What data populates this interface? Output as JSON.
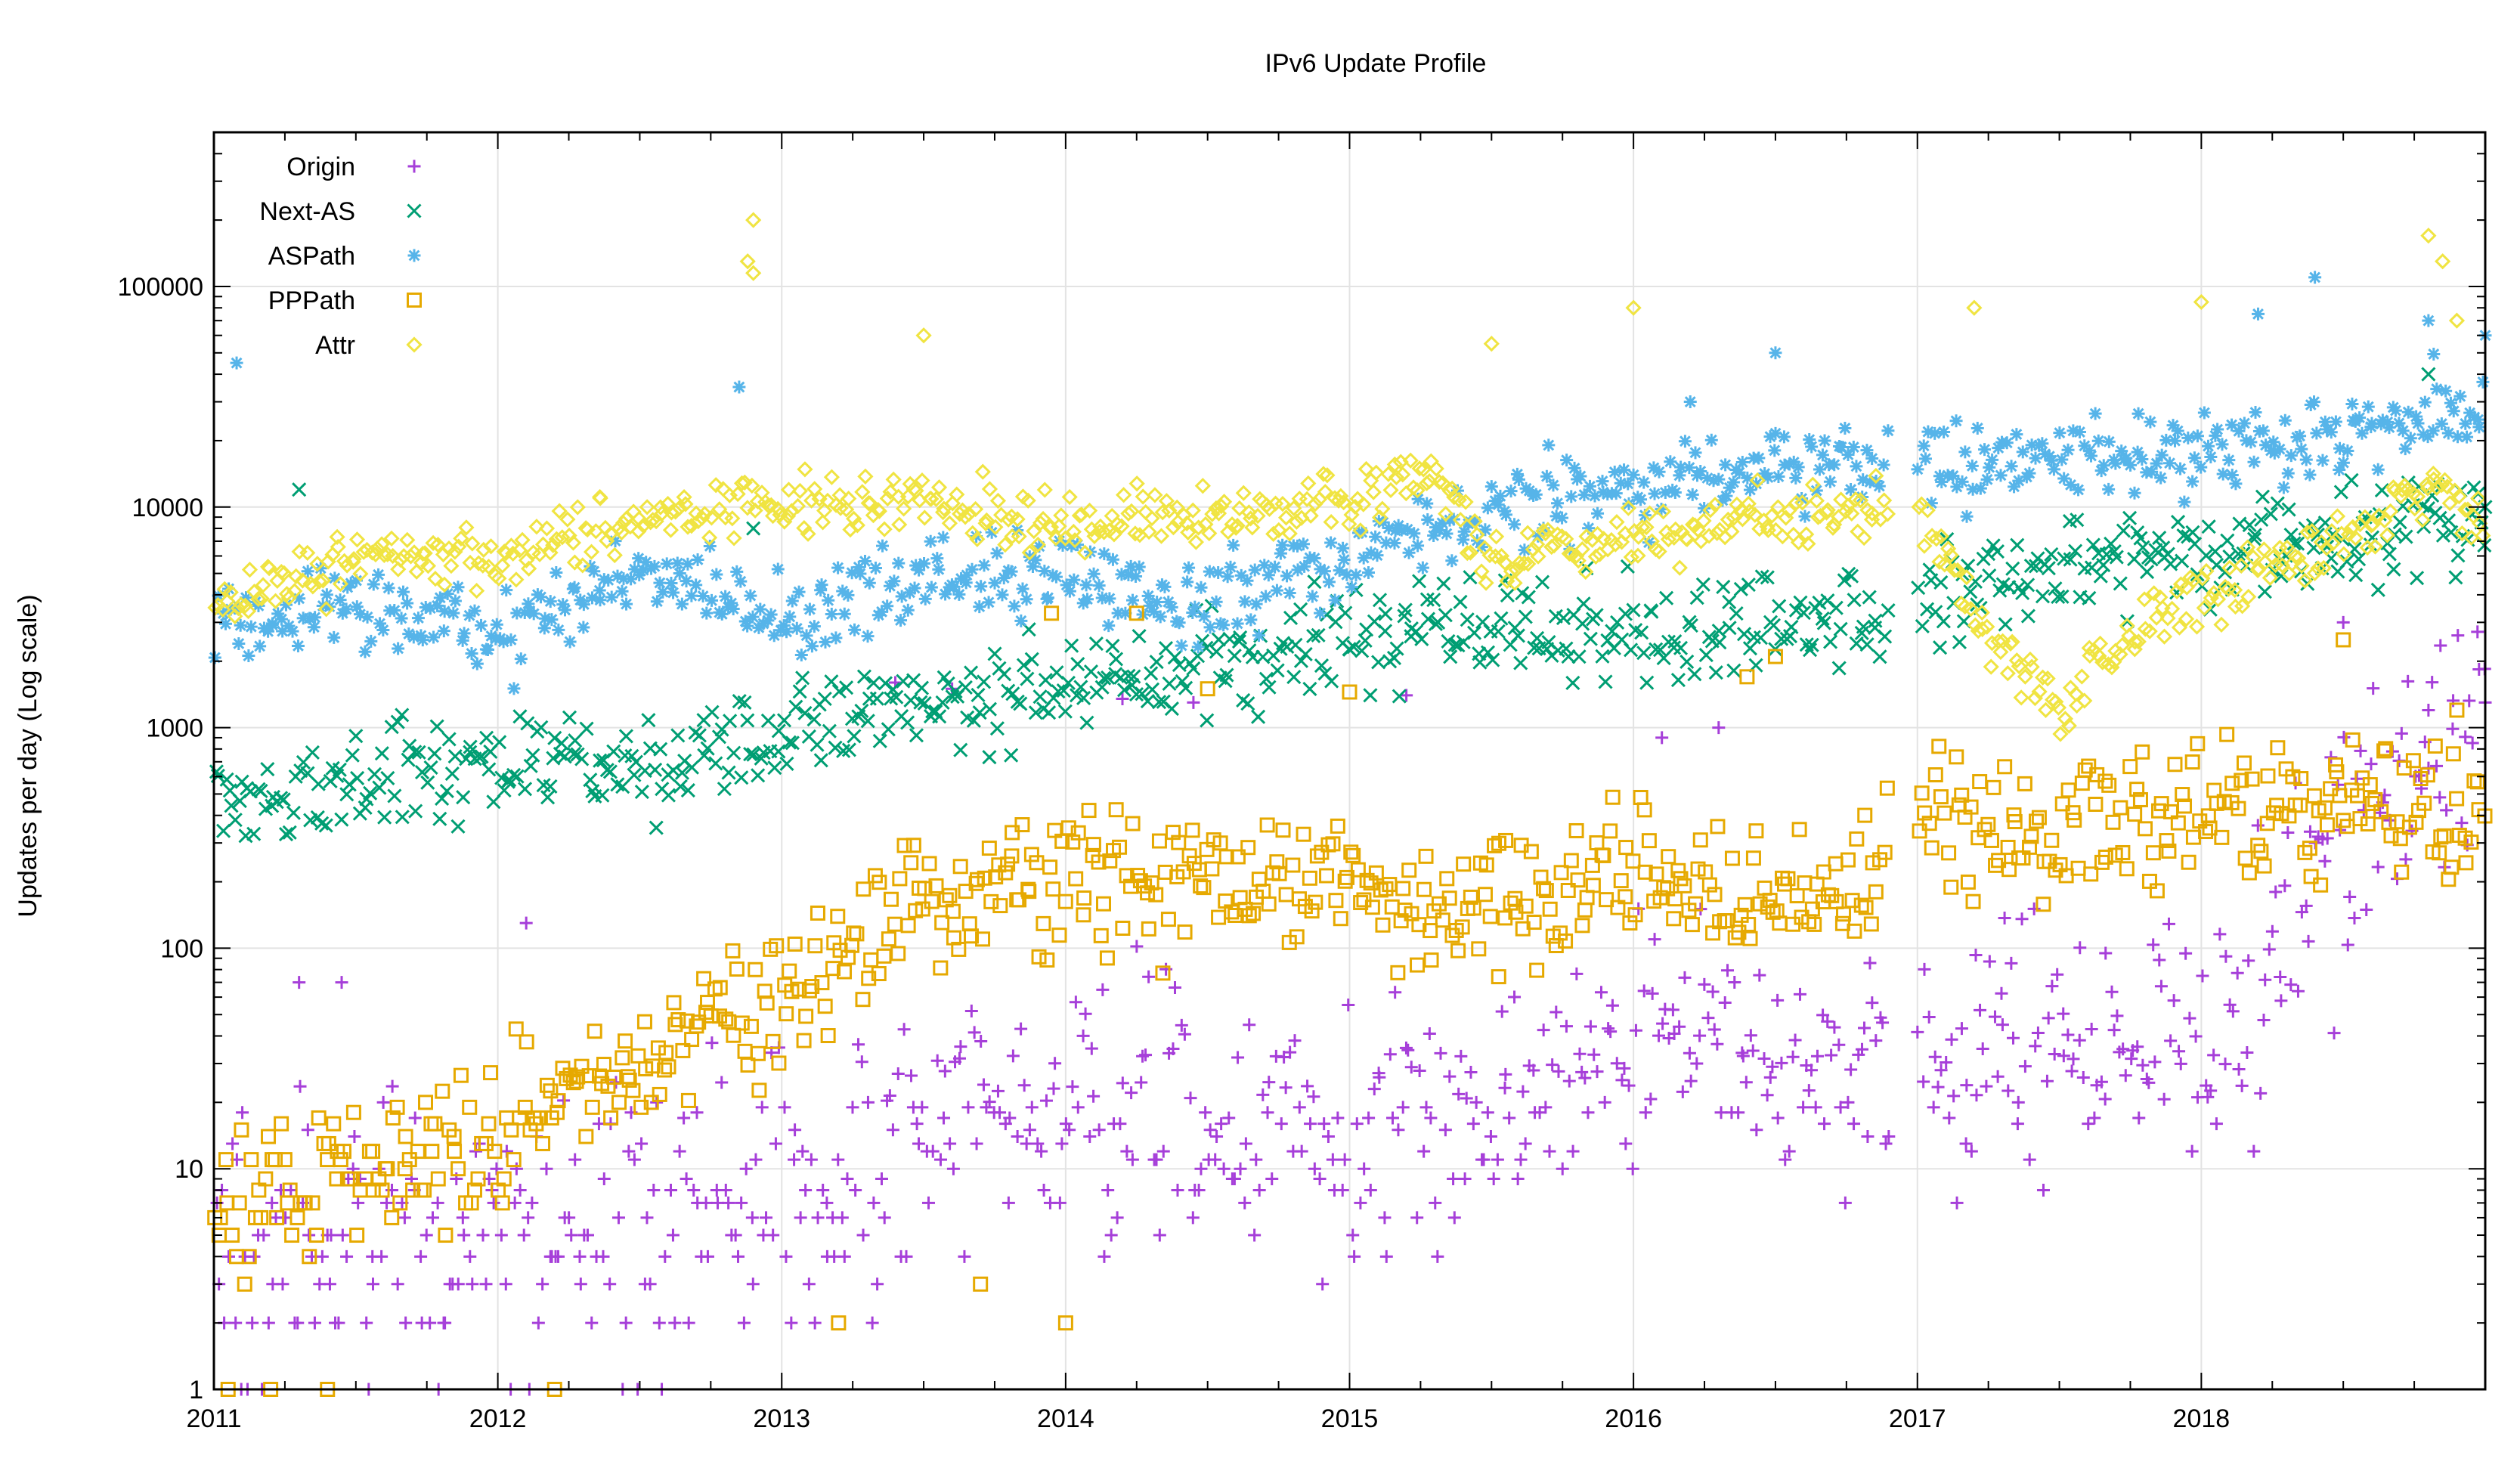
{
  "chart_data": {
    "type": "scatter",
    "title": "IPv6 Update Profile",
    "xlabel": "",
    "ylabel": "Updates per day (Log scale)",
    "xscale": "time",
    "yscale": "log",
    "xlim": [
      2011.0,
      2019.0
    ],
    "ylim": [
      1,
      500000
    ],
    "grid": true,
    "legend_position": "top-left",
    "x_ticks": [
      {
        "value": 2011,
        "label": "2011"
      },
      {
        "value": 2012,
        "label": "2012"
      },
      {
        "value": 2013,
        "label": "2013"
      },
      {
        "value": 2014,
        "label": "2014"
      },
      {
        "value": 2015,
        "label": "2015"
      },
      {
        "value": 2016,
        "label": "2016"
      },
      {
        "value": 2017,
        "label": "2017"
      },
      {
        "value": 2018,
        "label": "2018"
      }
    ],
    "y_ticks": [
      {
        "value": 1,
        "label": "1"
      },
      {
        "value": 10,
        "label": "10"
      },
      {
        "value": 100,
        "label": "100"
      },
      {
        "value": 1000,
        "label": "1000"
      },
      {
        "value": 10000,
        "label": "10000"
      },
      {
        "value": 100000,
        "label": "100000"
      }
    ],
    "data_gap": [
      2016.9,
      2017.0
    ],
    "series": [
      {
        "name": "Origin",
        "marker": "plus",
        "color": "#a63fd9",
        "trend": [
          [
            2011.0,
            3
          ],
          [
            2011.5,
            4
          ],
          [
            2012.0,
            5
          ],
          [
            2012.5,
            6
          ],
          [
            2013.0,
            8
          ],
          [
            2013.5,
            12
          ],
          [
            2014.0,
            18
          ],
          [
            2014.5,
            18
          ],
          [
            2015.0,
            15
          ],
          [
            2015.5,
            18
          ],
          [
            2016.0,
            40
          ],
          [
            2016.5,
            40
          ],
          [
            2016.9,
            25
          ],
          [
            2017.0,
            25
          ],
          [
            2017.5,
            45
          ],
          [
            2018.0,
            35
          ],
          [
            2018.5,
            300
          ],
          [
            2019.0,
            1200
          ]
        ],
        "spread_decades": 0.55,
        "highlights": [
          [
            2011.1,
            18
          ],
          [
            2011.3,
            70
          ],
          [
            2011.45,
            70
          ],
          [
            2012.1,
            130
          ],
          [
            2013.4,
            1600
          ],
          [
            2013.6,
            1500
          ],
          [
            2014.2,
            1350
          ],
          [
            2014.45,
            1300
          ],
          [
            2015.2,
            1400
          ],
          [
            2016.1,
            900
          ],
          [
            2016.3,
            1000
          ],
          [
            2017.3,
            45
          ],
          [
            2018.5,
            3000
          ],
          [
            2018.8,
            1200
          ],
          [
            2019.0,
            1300
          ]
        ]
      },
      {
        "name": "Next-AS",
        "marker": "x",
        "color": "#009e73",
        "trend": [
          [
            2011.0,
            500
          ],
          [
            2011.5,
            550
          ],
          [
            2012.0,
            700
          ],
          [
            2012.5,
            700
          ],
          [
            2013.0,
            1000
          ],
          [
            2013.5,
            1300
          ],
          [
            2014.0,
            1500
          ],
          [
            2014.5,
            2000
          ],
          [
            2015.0,
            2500
          ],
          [
            2015.5,
            3000
          ],
          [
            2016.0,
            2500
          ],
          [
            2016.5,
            3000
          ],
          [
            2016.9,
            3500
          ],
          [
            2017.0,
            3500
          ],
          [
            2017.5,
            5000
          ],
          [
            2018.0,
            6000
          ],
          [
            2018.5,
            7000
          ],
          [
            2019.0,
            9000
          ]
        ],
        "spread_decades": 0.22,
        "highlights": [
          [
            2011.3,
            12000
          ],
          [
            2012.9,
            8000
          ],
          [
            2018.8,
            40000
          ],
          [
            2019.0,
            10000
          ]
        ]
      },
      {
        "name": "ASPath",
        "marker": "star",
        "color": "#56b4e9",
        "trend": [
          [
            2011.0,
            2500
          ],
          [
            2011.5,
            4000
          ],
          [
            2012.0,
            2500
          ],
          [
            2012.5,
            5000
          ],
          [
            2013.0,
            3000
          ],
          [
            2013.5,
            4500
          ],
          [
            2014.0,
            5000
          ],
          [
            2014.5,
            3500
          ],
          [
            2015.0,
            6000
          ],
          [
            2015.5,
            10000
          ],
          [
            2016.0,
            12000
          ],
          [
            2016.5,
            16000
          ],
          [
            2016.9,
            14000
          ],
          [
            2017.0,
            15000
          ],
          [
            2017.5,
            16000
          ],
          [
            2018.0,
            18000
          ],
          [
            2018.5,
            22000
          ],
          [
            2019.0,
            30000
          ]
        ],
        "spread_decades": 0.18,
        "highlights": [
          [
            2011.08,
            45000
          ],
          [
            2012.85,
            35000
          ],
          [
            2016.2,
            30000
          ],
          [
            2016.5,
            50000
          ],
          [
            2018.2,
            75000
          ],
          [
            2018.4,
            110000
          ],
          [
            2018.8,
            70000
          ],
          [
            2019.0,
            60000
          ]
        ]
      },
      {
        "name": "PPPath",
        "marker": "square",
        "color": "#e6a900",
        "trend": [
          [
            2011.0,
            6
          ],
          [
            2011.5,
            10
          ],
          [
            2012.0,
            15
          ],
          [
            2012.5,
            30
          ],
          [
            2013.0,
            60
          ],
          [
            2013.5,
            150
          ],
          [
            2014.0,
            200
          ],
          [
            2014.5,
            200
          ],
          [
            2015.0,
            180
          ],
          [
            2015.5,
            160
          ],
          [
            2016.0,
            200
          ],
          [
            2016.5,
            160
          ],
          [
            2016.9,
            200
          ],
          [
            2017.0,
            400
          ],
          [
            2017.5,
            300
          ],
          [
            2018.0,
            450
          ],
          [
            2018.5,
            450
          ],
          [
            2019.0,
            400
          ]
        ],
        "spread_decades": 0.3,
        "highlights": [
          [
            2011.05,
            1
          ],
          [
            2011.2,
            1
          ],
          [
            2011.4,
            1
          ],
          [
            2012.2,
            1
          ],
          [
            2013.2,
            2
          ],
          [
            2013.7,
            3
          ],
          [
            2014.0,
            2
          ],
          [
            2013.95,
            3300
          ],
          [
            2014.25,
            3300
          ],
          [
            2014.5,
            1500
          ],
          [
            2015.0,
            1450
          ],
          [
            2016.4,
            1700
          ],
          [
            2016.5,
            2100
          ],
          [
            2018.5,
            2500
          ],
          [
            2018.9,
            1200
          ]
        ]
      },
      {
        "name": "Attr",
        "marker": "diamond",
        "color": "#f0e442",
        "trend": [
          [
            2011.0,
            3500
          ],
          [
            2011.5,
            6000
          ],
          [
            2012.0,
            6000
          ],
          [
            2012.5,
            9000
          ],
          [
            2013.0,
            10000
          ],
          [
            2013.5,
            11000
          ],
          [
            2014.0,
            8000
          ],
          [
            2014.5,
            9000
          ],
          [
            2015.0,
            11000
          ],
          [
            2015.3,
            14000
          ],
          [
            2015.5,
            6000
          ],
          [
            2016.0,
            7000
          ],
          [
            2016.5,
            9000
          ],
          [
            2016.9,
            10000
          ],
          [
            2017.0,
            10000
          ],
          [
            2017.2,
            3000
          ],
          [
            2017.5,
            1200
          ],
          [
            2017.8,
            3000
          ],
          [
            2018.0,
            4000
          ],
          [
            2018.5,
            7000
          ],
          [
            2018.8,
            12000
          ],
          [
            2019.0,
            9000
          ]
        ],
        "spread_decades": 0.12,
        "highlights": [
          [
            2012.9,
            200000
          ],
          [
            2012.88,
            130000
          ],
          [
            2012.9,
            115000
          ],
          [
            2013.5,
            60000
          ],
          [
            2015.5,
            55000
          ],
          [
            2016.0,
            80000
          ],
          [
            2017.2,
            80000
          ],
          [
            2018.0,
            85000
          ],
          [
            2018.8,
            170000
          ],
          [
            2018.85,
            130000
          ],
          [
            2018.9,
            70000
          ]
        ]
      }
    ]
  }
}
